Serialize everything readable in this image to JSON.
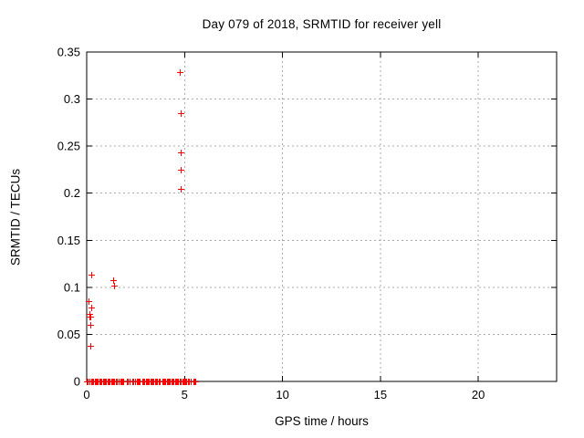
{
  "window": {
    "background": "#ffffff"
  },
  "chart_data": {
    "type": "scatter",
    "title": "Day 079 of 2018, SRMTID for receiver yell",
    "xlabel": "GPS time / hours",
    "ylabel": "SRMTID / TECUs",
    "xlim": [
      0,
      24
    ],
    "ylim": [
      0,
      0.35
    ],
    "xtick_labels": [
      "0",
      "5",
      "10",
      "15",
      "20"
    ],
    "ytick_labels": [
      "0",
      "0.05",
      "0.1",
      "0.15",
      "0.2",
      "0.25",
      "0.3",
      "0.35"
    ],
    "grid": true,
    "legend": "none",
    "marker": {
      "shape": "plus",
      "color": "#ff0000",
      "size": 7
    },
    "colors": {
      "border": "#000000",
      "grid": "#aaaaaa",
      "text": "#000000"
    },
    "series": [
      {
        "name": "SRMTID",
        "points": [
          [
            0.25,
            0.113
          ],
          [
            0.1,
            0.085
          ],
          [
            0.25,
            0.079
          ],
          [
            0.12,
            0.072
          ],
          [
            0.15,
            0.069
          ],
          [
            0.18,
            0.069
          ],
          [
            0.2,
            0.06
          ],
          [
            0.2,
            0.038
          ],
          [
            1.33,
            0.108
          ],
          [
            1.38,
            0.102
          ],
          [
            4.76,
            0.329
          ],
          [
            4.8,
            0.285
          ],
          [
            4.79,
            0.243
          ],
          [
            4.79,
            0.225
          ],
          [
            4.79,
            0.205
          ]
        ],
        "zero_band": {
          "y": 0,
          "x_step": 0.06,
          "x_ranges": [
            [
              0.0,
              0.12
            ],
            [
              0.22,
              1.42
            ],
            [
              1.5,
              1.64
            ],
            [
              1.72,
              1.86
            ],
            [
              2.05,
              2.2
            ],
            [
              2.33,
              2.48
            ],
            [
              2.55,
              2.7
            ],
            [
              2.82,
              2.95
            ],
            [
              3.02,
              3.12
            ],
            [
              3.18,
              3.75
            ],
            [
              3.85,
              4.18
            ],
            [
              4.26,
              4.8
            ],
            [
              4.87,
              5.06
            ],
            [
              5.18,
              5.33
            ],
            [
              5.45,
              5.55
            ]
          ]
        }
      }
    ]
  }
}
